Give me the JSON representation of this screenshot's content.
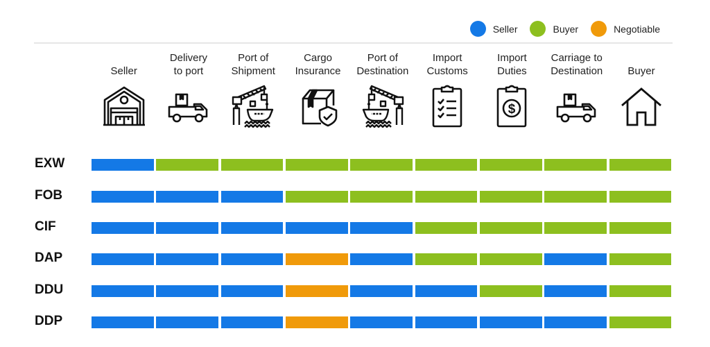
{
  "legend": {
    "items": [
      {
        "key": "seller",
        "label": "Seller",
        "color": "#1479e6"
      },
      {
        "key": "buyer",
        "label": "Buyer",
        "color": "#8dbf1f"
      },
      {
        "key": "negotiable",
        "label": "Negotiable",
        "color": "#f09a0a"
      }
    ]
  },
  "columns": [
    {
      "label": "Seller",
      "icon": "warehouse-icon"
    },
    {
      "label": "Delivery\nto port",
      "icon": "delivery-truck-icon"
    },
    {
      "label": "Port of\nShipment",
      "icon": "port-crane-ship-icon"
    },
    {
      "label": "Cargo\nInsurance",
      "icon": "insured-box-icon"
    },
    {
      "label": "Port of\nDestination",
      "icon": "port-crane-ship-mirrored-icon"
    },
    {
      "label": "Import\nCustoms",
      "icon": "checklist-clipboard-icon"
    },
    {
      "label": "Import\nDuties",
      "icon": "dollar-clipboard-icon"
    },
    {
      "label": "Carriage to\nDestination",
      "icon": "delivery-truck-icon"
    },
    {
      "label": "Buyer",
      "icon": "house-icon"
    }
  ],
  "rows": [
    {
      "term": "EXW",
      "segments": [
        "seller",
        "buyer",
        "buyer",
        "buyer",
        "buyer",
        "buyer",
        "buyer",
        "buyer",
        "buyer"
      ]
    },
    {
      "term": "FOB",
      "segments": [
        "seller",
        "seller",
        "seller",
        "buyer",
        "buyer",
        "buyer",
        "buyer",
        "buyer",
        "buyer"
      ]
    },
    {
      "term": "CIF",
      "segments": [
        "seller",
        "seller",
        "seller",
        "seller",
        "seller",
        "buyer",
        "buyer",
        "buyer",
        "buyer"
      ]
    },
    {
      "term": "DAP",
      "segments": [
        "seller",
        "seller",
        "seller",
        "negotiable",
        "seller",
        "buyer",
        "buyer",
        "seller",
        "buyer"
      ]
    },
    {
      "term": "DDU",
      "segments": [
        "seller",
        "seller",
        "seller",
        "negotiable",
        "seller",
        "seller",
        "buyer",
        "seller",
        "buyer"
      ]
    },
    {
      "term": "DDP",
      "segments": [
        "seller",
        "seller",
        "seller",
        "negotiable",
        "seller",
        "seller",
        "seller",
        "seller",
        "buyer"
      ]
    }
  ]
}
